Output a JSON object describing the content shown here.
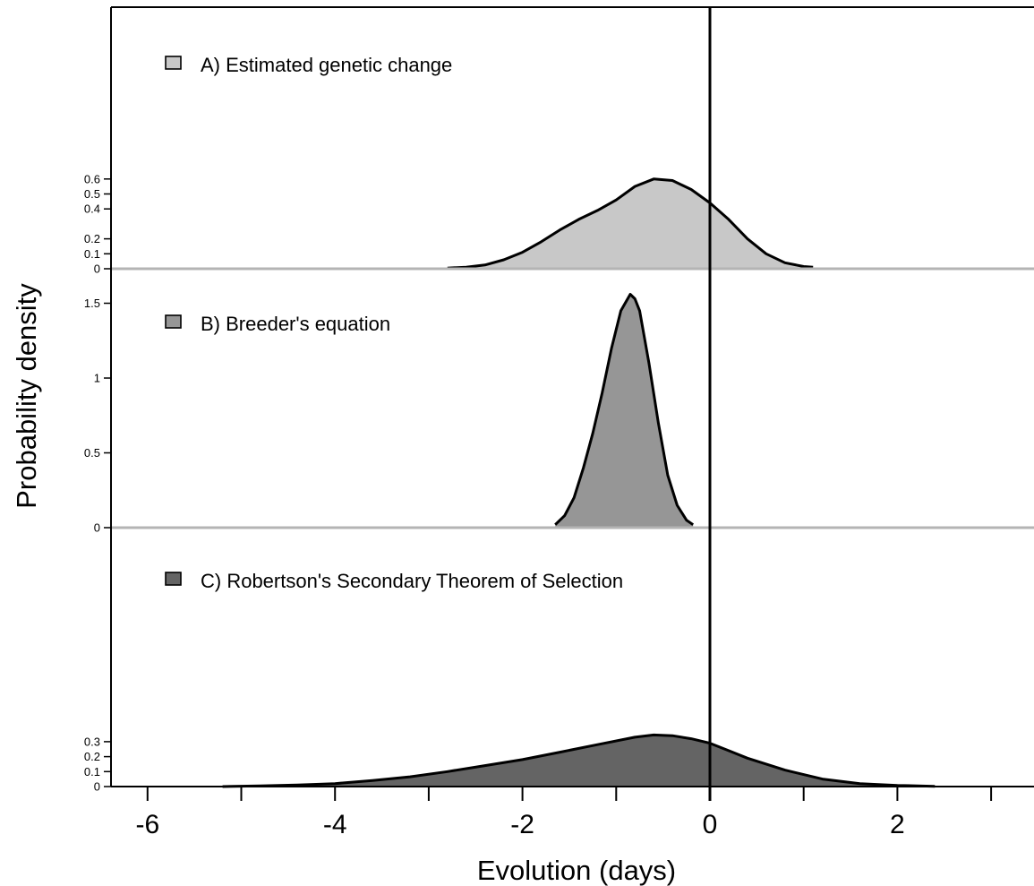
{
  "chart_data": {
    "type": "area",
    "xlabel": "Evolution (days)",
    "ylabel": "Probability density",
    "xlim": [
      -6.4,
      3.45
    ],
    "x_ticks": [
      -6,
      -5,
      -4,
      -3,
      -2,
      -1,
      0,
      1,
      2,
      3
    ],
    "x_tick_labels": [
      "-6",
      "",
      "-4",
      "",
      "-2",
      "",
      "0",
      "",
      "2",
      ""
    ],
    "reference_line_x": 0,
    "panels": [
      {
        "id": "A",
        "name": "A) Estimated genetic change",
        "fill": "#c8c8c8",
        "ylim": [
          0,
          0.6
        ],
        "y_ticks": [
          0,
          0.1,
          0.2,
          0.4,
          0.5,
          0.6
        ],
        "y_tick_labels": [
          "0",
          "0.1",
          "0.2",
          "0.4",
          "0.5",
          "0.6"
        ],
        "x": [
          -2.8,
          -2.6,
          -2.4,
          -2.2,
          -2.0,
          -1.8,
          -1.6,
          -1.4,
          -1.2,
          -1.0,
          -0.8,
          -0.6,
          -0.4,
          -0.2,
          0.0,
          0.2,
          0.4,
          0.6,
          0.8,
          1.0,
          1.1
        ],
        "y": [
          0.005,
          0.01,
          0.025,
          0.06,
          0.11,
          0.18,
          0.26,
          0.33,
          0.39,
          0.46,
          0.55,
          0.6,
          0.59,
          0.53,
          0.44,
          0.33,
          0.2,
          0.1,
          0.04,
          0.015,
          0.01
        ]
      },
      {
        "id": "B",
        "name": "B) Breeder's equation",
        "fill": "#969696",
        "ylim": [
          0,
          1.55
        ],
        "y_ticks": [
          0,
          0.5,
          1,
          1.5
        ],
        "y_tick_labels": [
          "0",
          "0.5",
          "1",
          "1.5"
        ],
        "x": [
          -1.65,
          -1.55,
          -1.45,
          -1.35,
          -1.25,
          -1.15,
          -1.05,
          -0.95,
          -0.85,
          -0.8,
          -0.75,
          -0.65,
          -0.55,
          -0.45,
          -0.35,
          -0.25,
          -0.18
        ],
        "y": [
          0.02,
          0.08,
          0.2,
          0.4,
          0.63,
          0.9,
          1.2,
          1.45,
          1.56,
          1.53,
          1.45,
          1.1,
          0.7,
          0.35,
          0.15,
          0.05,
          0.02
        ]
      },
      {
        "id": "C",
        "name": "C) Robertson's Secondary Theorem of Selection",
        "fill": "#646464",
        "ylim": [
          0,
          0.35
        ],
        "y_ticks": [
          0,
          0.1,
          0.2,
          0.3
        ],
        "y_tick_labels": [
          "0",
          "0.1",
          "0.2",
          "0.3"
        ],
        "x": [
          -5.2,
          -4.8,
          -4.4,
          -4.0,
          -3.6,
          -3.2,
          -2.8,
          -2.4,
          -2.0,
          -1.6,
          -1.2,
          -0.8,
          -0.6,
          -0.4,
          -0.2,
          0.0,
          0.2,
          0.4,
          0.8,
          1.2,
          1.6,
          2.0,
          2.4
        ],
        "y": [
          0.0,
          0.005,
          0.01,
          0.02,
          0.04,
          0.065,
          0.1,
          0.14,
          0.18,
          0.23,
          0.28,
          0.33,
          0.345,
          0.34,
          0.32,
          0.29,
          0.24,
          0.19,
          0.11,
          0.05,
          0.02,
          0.008,
          0.002
        ]
      }
    ]
  }
}
